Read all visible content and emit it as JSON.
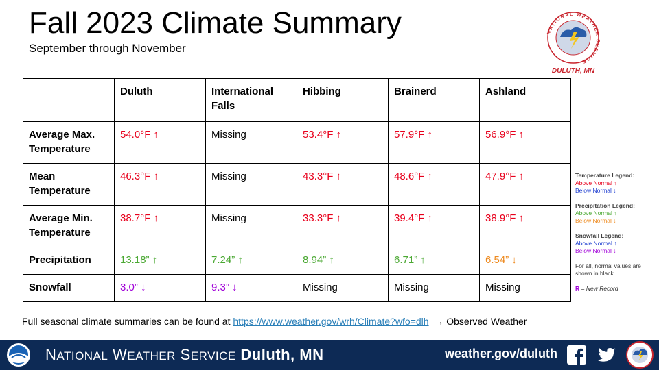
{
  "header": {
    "title": "Fall 2023 Climate Summary",
    "subtitle": "September through November"
  },
  "logo": {
    "ring_text": "NATIONAL WEATHER SERVICE",
    "office": "DULUTH, MN"
  },
  "table": {
    "columns": [
      "Duluth",
      "International Falls",
      "Hibbing",
      "Brainerd",
      "Ashland"
    ],
    "rows": [
      {
        "label": "Average Max. Temperature",
        "cells": [
          {
            "value": "54.0°F",
            "arrow": "↑",
            "status": "above"
          },
          {
            "value": "Missing",
            "arrow": "",
            "status": "normal"
          },
          {
            "value": "53.4°F",
            "arrow": "↑",
            "status": "above"
          },
          {
            "value": "57.9°F",
            "arrow": "↑",
            "status": "above"
          },
          {
            "value": "56.9°F",
            "arrow": "↑",
            "status": "above"
          }
        ]
      },
      {
        "label": "Mean Temperature",
        "cells": [
          {
            "value": "46.3°F",
            "arrow": "↑",
            "status": "above"
          },
          {
            "value": "Missing",
            "arrow": "",
            "status": "normal"
          },
          {
            "value": "43.3°F",
            "arrow": "↑",
            "status": "above"
          },
          {
            "value": "48.6°F",
            "arrow": "↑",
            "status": "above"
          },
          {
            "value": "47.9°F",
            "arrow": "↑",
            "status": "above"
          }
        ]
      },
      {
        "label": "Average Min. Temperature",
        "cells": [
          {
            "value": "38.7°F",
            "arrow": "↑",
            "status": "above"
          },
          {
            "value": "Missing",
            "arrow": "",
            "status": "normal"
          },
          {
            "value": "33.3°F",
            "arrow": "↑",
            "status": "above"
          },
          {
            "value": "39.4°F",
            "arrow": "↑",
            "status": "above"
          },
          {
            "value": "38.9°F",
            "arrow": "↑",
            "status": "above"
          }
        ]
      },
      {
        "label": "Precipitation",
        "cells": [
          {
            "value": "13.18”",
            "arrow": "↑",
            "status": "above"
          },
          {
            "value": "7.24”",
            "arrow": "↑",
            "status": "above"
          },
          {
            "value": "8.94”",
            "arrow": "↑",
            "status": "above"
          },
          {
            "value": "6.71”",
            "arrow": "↑",
            "status": "above"
          },
          {
            "value": "6.54”",
            "arrow": "↓",
            "status": "below"
          }
        ]
      },
      {
        "label": "Snowfall",
        "cells": [
          {
            "value": "3.0”",
            "arrow": "↓",
            "status": "below"
          },
          {
            "value": "9.3”",
            "arrow": "↓",
            "status": "below"
          },
          {
            "value": "Missing",
            "arrow": "",
            "status": "normal"
          },
          {
            "value": "Missing",
            "arrow": "",
            "status": "normal"
          },
          {
            "value": "Missing",
            "arrow": "",
            "status": "normal"
          }
        ]
      }
    ]
  },
  "legend": {
    "temp_title": "Temperature Legend:",
    "temp_above": "Above Normal ↑",
    "temp_below": "Below Normal ↓",
    "precip_title": "Precipitation Legend:",
    "precip_above": "Above Normal ↑",
    "precip_below": "Below Normal ↓",
    "snow_title": "Snowfall Legend:",
    "snow_above": "Above Normal ↑",
    "snow_below": "Below Normal ↓",
    "normal_note_pre": "For all, normal values are shown in",
    "normal_note_word": "black",
    "record_symbol": "R",
    "record_text": "= New Record"
  },
  "footnote": {
    "text": "Full seasonal climate summaries can be found at",
    "link": "https://www.weather.gov/wrh/Climate?wfo=dlh",
    "after": "→ Observed Weather"
  },
  "footer": {
    "org_n": "N",
    "org_ational": "ATIONAL",
    "org_w": "W",
    "org_eather": "EATHER",
    "org_s": "S",
    "org_ervice": "ERVICE",
    "org_office": "Duluth, MN",
    "site": "weather.gov/duluth"
  },
  "colors": {
    "temp_above": "#e8001c",
    "temp_below": "#1f3fd0",
    "precip_above": "#4aa832",
    "precip_below": "#ee8a1f",
    "snow_above": "#1f3fd0",
    "snow_below": "#a000d8",
    "footer_bg": "#0d2a55",
    "link": "#2a7fb8"
  }
}
